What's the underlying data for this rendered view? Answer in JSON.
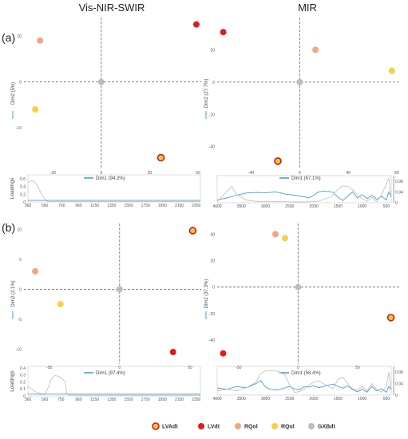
{
  "columns": [
    "Vis-NIR-SWIR",
    "MIR"
  ],
  "panel_labels": [
    "(a)",
    "(b)"
  ],
  "loadings_label": "Loadings",
  "legend": [
    {
      "label": "LVAdt",
      "fill": "#f5c542",
      "stroke": "#e31a1c"
    },
    {
      "label": "LVdt",
      "fill": "#e31a1c",
      "stroke": "#e31a1c"
    },
    {
      "label": "RQol",
      "fill": "#f4a582",
      "stroke": "#f4a582"
    },
    {
      "label": "RQol",
      "fill": "#f5d142",
      "stroke": "#f5d142"
    },
    {
      "label": "GXBdt",
      "fill": "#bdbdbd",
      "stroke": "#bdbdbd"
    }
  ],
  "colors": {
    "line_blue": "#4a9fd4",
    "line_gray": "#bbbbbb",
    "origin": "#bdbdbd"
  },
  "chart_data": [
    {
      "type": "scatter",
      "id": "a-visnir",
      "xlabel": "Dim1 (94.2%)",
      "ylabel": "Dim2 (5%)",
      "xlim": [
        -48,
        62
      ],
      "ylim": [
        -19,
        14
      ],
      "xticks": [
        -30,
        0,
        30,
        60
      ],
      "yticks": [
        -10,
        0,
        10
      ],
      "points": [
        {
          "x": -38,
          "y": 9,
          "group": 2
        },
        {
          "x": 59,
          "y": 12.5,
          "group": 1
        },
        {
          "x": -41,
          "y": -6,
          "group": 3
        },
        {
          "x": 0,
          "y": 0,
          "group": 4
        },
        {
          "x": 37,
          "y": -16.5,
          "group": 0
        }
      ]
    },
    {
      "type": "scatter",
      "id": "a-mir",
      "xlabel": "Dim1 (67.1%)",
      "ylabel": "Dim2 (27.7%)",
      "xlim": [
        -68,
        82
      ],
      "ylim": [
        -54,
        40
      ],
      "xticks": [
        -40,
        0,
        40,
        80
      ],
      "yticks": [
        -40,
        -20,
        0,
        20
      ],
      "points": [
        {
          "x": -63,
          "y": 31,
          "group": 1
        },
        {
          "x": 13,
          "y": 20,
          "group": 2
        },
        {
          "x": 76,
          "y": 7,
          "group": 3
        },
        {
          "x": 0,
          "y": 0,
          "group": 4
        },
        {
          "x": -18,
          "y": -49,
          "group": 0
        }
      ]
    },
    {
      "type": "scatter",
      "id": "b-visnir",
      "xlabel": "Dim1 (97.4%)",
      "ylabel": "Dim2 (2.1%)",
      "xlim": [
        -68,
        58
      ],
      "ylim": [
        -12.5,
        11
      ],
      "xticks": [
        -50,
        0,
        50
      ],
      "yticks": [
        -10,
        -5,
        0,
        5,
        10
      ],
      "points": [
        {
          "x": 52,
          "y": 9.8,
          "group": 0
        },
        {
          "x": -60,
          "y": 3,
          "group": 2
        },
        {
          "x": -42,
          "y": -2.5,
          "group": 3
        },
        {
          "x": 0,
          "y": 0,
          "group": 4
        },
        {
          "x": 38,
          "y": -10.5,
          "group": 1
        }
      ]
    },
    {
      "type": "scatter",
      "id": "b-mir",
      "xlabel": "Dim1 (58.4%)",
      "ylabel": "Dim2 (37.3%)",
      "xlim": [
        -68,
        85
      ],
      "ylim": [
        -58,
        48
      ],
      "xticks": [
        -50,
        0,
        50
      ],
      "yticks": [
        -40,
        -20,
        0,
        20,
        40
      ],
      "points": [
        {
          "x": -19,
          "y": 40,
          "group": 2
        },
        {
          "x": -11,
          "y": 37,
          "group": 3
        },
        {
          "x": 0,
          "y": 0,
          "group": 4
        },
        {
          "x": 78,
          "y": -23,
          "group": 0
        },
        {
          "x": -63,
          "y": -50,
          "group": 1
        }
      ]
    },
    {
      "type": "line",
      "id": "a-visnir-loadings",
      "xticks": [
        360,
        560,
        760,
        960,
        1150,
        1350,
        1550,
        1750,
        1950,
        2150,
        2350
      ],
      "yticks": [
        0,
        0.2,
        0.4,
        0.6
      ],
      "xlim": [
        360,
        2400
      ],
      "ylim": [
        0,
        0.7
      ],
      "series": [
        {
          "color": "gray",
          "x": [
            360,
            400,
            440,
            480,
            520,
            560,
            600,
            2400
          ],
          "y": [
            0.5,
            0.55,
            0.52,
            0.38,
            0.2,
            0.06,
            0.01,
            0.01
          ]
        },
        {
          "color": "blue",
          "x": [
            360,
            2400
          ],
          "y": [
            0.04,
            0.04
          ]
        }
      ]
    },
    {
      "type": "line",
      "id": "a-mir-loadings",
      "xticks": [
        4000,
        3500,
        3000,
        2500,
        2000,
        1500,
        1000,
        500
      ],
      "yticks": [
        0,
        0.04,
        0.08
      ],
      "xlim": [
        4000,
        400
      ],
      "ylim": [
        0,
        0.1
      ],
      "series": [
        {
          "color": "blue",
          "x": [
            4000,
            3800,
            3600,
            3400,
            3200,
            3000,
            2900,
            2800,
            2700,
            2600,
            2500,
            2400,
            2300,
            2200,
            2100,
            2000,
            1900,
            1800,
            1700,
            1600,
            1500,
            1400,
            1300,
            1200,
            1100,
            1000,
            900,
            800,
            700,
            600,
            500,
            450,
            400
          ],
          "y": [
            0.01,
            0.018,
            0.028,
            0.036,
            0.038,
            0.037,
            0.038,
            0.04,
            0.037,
            0.032,
            0.03,
            0.028,
            0.024,
            0.022,
            0.018,
            0.028,
            0.04,
            0.043,
            0.042,
            0.038,
            0.02,
            0.008,
            0.025,
            0.04,
            0.018,
            0.03,
            0.015,
            0.028,
            0.012,
            0.024,
            0.01,
            0.04,
            0.02
          ]
        },
        {
          "color": "gray",
          "x": [
            4000,
            3800,
            3700,
            3600,
            3400,
            3200,
            3000,
            2800,
            2600,
            2400,
            2200,
            2000,
            1900,
            1800,
            1700,
            1600,
            1500,
            1400,
            1300,
            1200,
            1100,
            1000,
            900,
            800,
            700,
            600,
            500,
            450,
            400
          ],
          "y": [
            0.005,
            0.04,
            0.06,
            0.03,
            0.01,
            0.005,
            0.004,
            0.004,
            0.004,
            0.003,
            0.003,
            0.004,
            0.006,
            0.012,
            0.018,
            0.03,
            0.05,
            0.062,
            0.06,
            0.048,
            0.03,
            0.015,
            0.005,
            0.02,
            0.004,
            0.03,
            0.07,
            0.09,
            0.02
          ]
        }
      ]
    },
    {
      "type": "line",
      "id": "b-visnir-loadings",
      "xticks": [
        360,
        560,
        750,
        960,
        1150,
        1350,
        1550,
        1750,
        1950,
        2150,
        2350
      ],
      "yticks": [
        0,
        0.1,
        0.2,
        0.3,
        0.4
      ],
      "xlim": [
        360,
        2400
      ],
      "ylim": [
        0,
        0.42
      ],
      "series": [
        {
          "color": "gray",
          "x": [
            360,
            400,
            450,
            500,
            560,
            600,
            640,
            680,
            720,
            760,
            800,
            820,
            860,
            2400
          ],
          "y": [
            0.14,
            0.1,
            0.06,
            0.035,
            0.02,
            0.12,
            0.25,
            0.29,
            0.28,
            0.25,
            0.2,
            0.03,
            0.01,
            0.01
          ]
        },
        {
          "color": "blue",
          "x": [
            360,
            2400
          ],
          "y": [
            0.025,
            0.025
          ]
        }
      ]
    },
    {
      "type": "line",
      "id": "b-mir-loadings",
      "xticks": [
        4000,
        3500,
        3000,
        2500,
        2000,
        1500,
        1000,
        500
      ],
      "yticks": [
        0,
        0.04,
        0.08
      ],
      "xlim": [
        4000,
        400
      ],
      "ylim": [
        0,
        0.1
      ],
      "series": [
        {
          "color": "blue",
          "x": [
            4000,
            3800,
            3600,
            3400,
            3200,
            3100,
            3000,
            2900,
            2800,
            2700,
            2600,
            2500,
            2400,
            2300,
            2200,
            2100,
            2000,
            1900,
            1800,
            1700,
            1600,
            1500,
            1400,
            1300,
            1200,
            1100,
            1000,
            900,
            800,
            700,
            600,
            500,
            450,
            400
          ],
          "y": [
            0.025,
            0.02,
            0.03,
            0.025,
            0.04,
            0.05,
            0.028,
            0.02,
            0.018,
            0.02,
            0.025,
            0.03,
            0.022,
            0.018,
            0.03,
            0.028,
            0.032,
            0.026,
            0.03,
            0.035,
            0.038,
            0.03,
            0.024,
            0.032,
            0.02,
            0.012,
            0.02,
            0.01,
            0.03,
            0.015,
            0.022,
            0.01,
            0.03,
            0.018
          ]
        },
        {
          "color": "gray",
          "x": [
            4000,
            3800,
            3600,
            3400,
            3200,
            3100,
            3000,
            2900,
            2800,
            2700,
            2600,
            2500,
            2400,
            2300,
            2200,
            2100,
            2000,
            1900,
            1800,
            1700,
            1600,
            1500,
            1400,
            1300,
            1200,
            1100,
            1000,
            900,
            800,
            700,
            600,
            500,
            450,
            400
          ],
          "y": [
            0.015,
            0.02,
            0.015,
            0.025,
            0.045,
            0.075,
            0.085,
            0.086,
            0.085,
            0.08,
            0.07,
            0.035,
            0.01,
            0.012,
            0.02,
            0.035,
            0.045,
            0.05,
            0.04,
            0.03,
            0.022,
            0.055,
            0.062,
            0.04,
            0.022,
            0.018,
            0.03,
            0.015,
            0.04,
            0.02,
            0.01,
            0.03,
            0.08,
            0.02
          ]
        }
      ]
    }
  ]
}
